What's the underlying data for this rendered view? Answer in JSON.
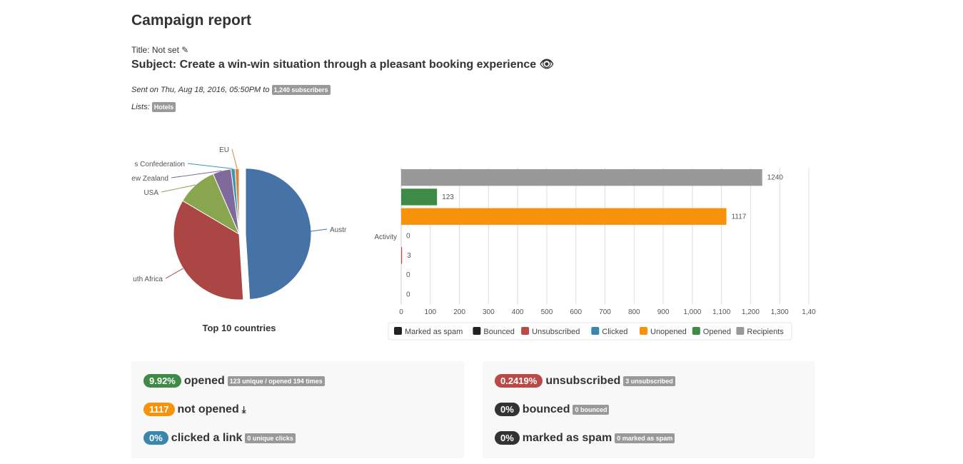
{
  "header": {
    "title": "Campaign report",
    "title_line": "Title: Not set",
    "subject": "Subject: Create a win-win situation through a pleasant booking experience",
    "sent_prefix": "Sent on Thu, Aug 18, 2016, 05:50PM to",
    "subscribers_badge": "1,240 subscribers",
    "lists_label": "Lists:",
    "list_badge": "Hotels"
  },
  "chart_data": [
    {
      "type": "pie",
      "title": "Top 10 countries",
      "labels": [
        "Australia",
        "South Africa",
        "USA",
        "New Zealand",
        "Swiss Confederation",
        "EU"
      ],
      "values": [
        49,
        34.5,
        10,
        4.5,
        1,
        1
      ],
      "colors": [
        "#4572a7",
        "#aa4643",
        "#89a54e",
        "#80699b",
        "#3d96ae",
        "#db843d"
      ],
      "visible_labels": [
        "Austr",
        "uth Africa",
        "USA",
        "ew Zealand",
        "s Confederation",
        "EU"
      ]
    },
    {
      "type": "bar",
      "orientation": "horizontal",
      "category_label": "Activity",
      "series": [
        {
          "name": "Recipients",
          "value": 1240,
          "color": "#999999"
        },
        {
          "name": "Opened",
          "value": 123,
          "color": "#3f8a47"
        },
        {
          "name": "Unopened",
          "value": 1117,
          "color": "#f7920b"
        },
        {
          "name": "Clicked",
          "value": 0,
          "color": "#3a87ad"
        },
        {
          "name": "Unsubscribed",
          "value": 3,
          "color": "#b94a48"
        },
        {
          "name": "Bounced",
          "value": 0,
          "color": "#222222"
        },
        {
          "name": "Marked as spam",
          "value": 0,
          "color": "#222222"
        }
      ],
      "xlim": [
        0,
        1400
      ],
      "xticks": [
        "0",
        "100",
        "200",
        "300",
        "400",
        "500",
        "600",
        "700",
        "800",
        "900",
        "1,000",
        "1,100",
        "1,200",
        "1,300",
        "1,40"
      ],
      "legend": [
        "Marked as spam",
        "Bounced",
        "Unsubscribed",
        "Clicked",
        "Unopened",
        "Opened",
        "Recipients"
      ],
      "legend_placement": "bottom",
      "grid": true
    }
  ],
  "stats_left": [
    {
      "value": "9.92%",
      "label": "opened",
      "badge": "123 unique / opened 194 times",
      "color": "#3f8a47"
    },
    {
      "value": "1117",
      "label": "not opened",
      "badge": "",
      "color": "#f7920b",
      "icon": "download-icon"
    },
    {
      "value": "0%",
      "label": "clicked a link",
      "badge": "0 unique clicks",
      "color": "#3a87ad"
    }
  ],
  "stats_right": [
    {
      "value": "0.2419%",
      "label": "unsubscribed",
      "badge": "3 unsubscribed",
      "color": "#b94a48"
    },
    {
      "value": "0%",
      "label": "bounced",
      "badge": "0 bounced",
      "color": "#333333"
    },
    {
      "value": "0%",
      "label": "marked as spam",
      "badge": "0 marked as spam",
      "color": "#333333"
    }
  ]
}
